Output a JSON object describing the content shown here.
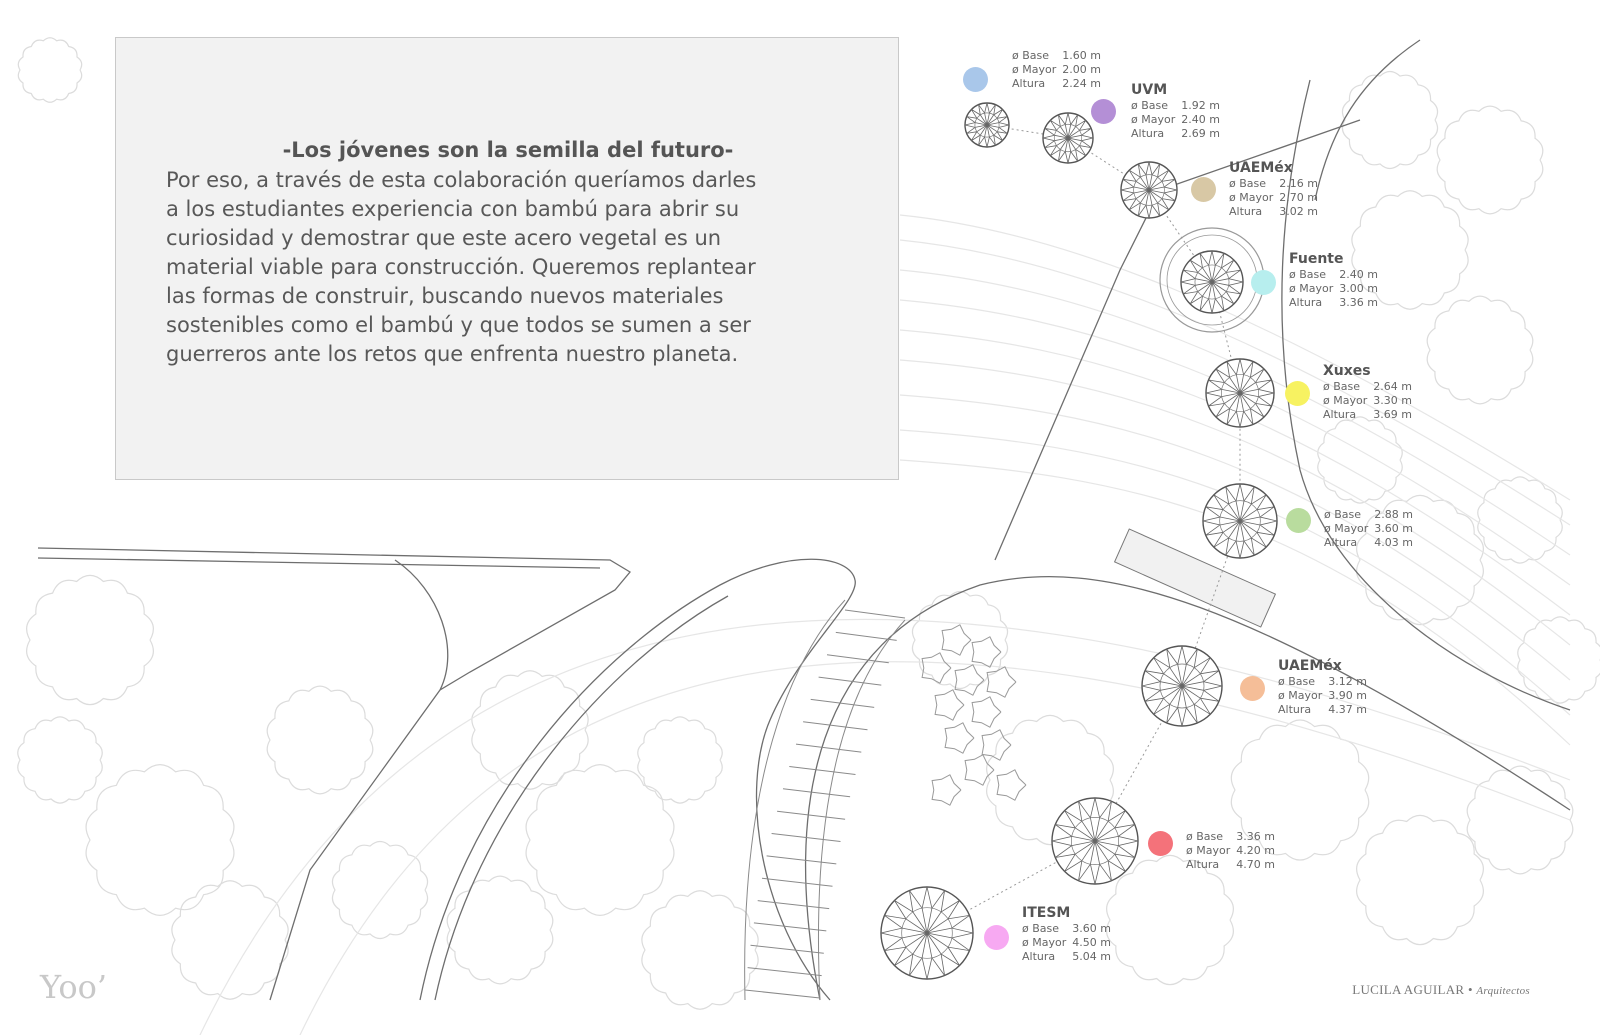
{
  "textbox": {
    "headline": "-Los jóvenes son la semilla del futuro-",
    "lines": [
      " Por eso, a través de esta colaboración queríamos darles",
      "a los estudiantes experiencia con bambú para abrir su",
      "curiosidad y demostrar que este acero vegetal es un",
      "material viable para construcción. Queremos replantear",
      "las formas de construir, buscando nuevos materiales",
      "sostenibles como el bambú y que todos se sumen a ser",
      "guerreros ante los retos que enfrenta nuestro planeta."
    ]
  },
  "keys": {
    "base": "ø Base",
    "mayor": "ø Mayor",
    "altura": "Altura"
  },
  "domes": [
    {
      "title": "",
      "base": "1.60 m",
      "mayor": "2.00 m",
      "altura": "2.24 m",
      "color": "#a9c7ea"
    },
    {
      "title": "UVM",
      "base": "1.92 m",
      "mayor": "2.40 m",
      "altura": "2.69 m",
      "color": "#b48fd6"
    },
    {
      "title": "UAEMéx",
      "base": "2.16 m",
      "mayor": "2.70 m",
      "altura": "3.02 m",
      "color": "#d8c8a5"
    },
    {
      "title": "Fuente",
      "base": "2.40 m",
      "mayor": "3.00 m",
      "altura": "3.36 m",
      "color": "#b7eeee"
    },
    {
      "title": "Xuxes",
      "base": "2.64 m",
      "mayor": "3.30 m",
      "altura": "3.69 m",
      "color": "#f7f261"
    },
    {
      "title": "",
      "base": "2.88 m",
      "mayor": "3.60 m",
      "altura": "4.03 m",
      "color": "#b9dc9e"
    },
    {
      "title": "UAEMéx",
      "base": "3.12 m",
      "mayor": "3.90 m",
      "altura": "4.37 m",
      "color": "#f5be98"
    },
    {
      "title": "",
      "base": "3.36 m",
      "mayor": "4.20 m",
      "altura": "4.70 m",
      "color": "#f4727a"
    },
    {
      "title": "ITESM",
      "base": "3.60 m",
      "mayor": "4.50 m",
      "altura": "5.04 m",
      "color": "#f7a9f2"
    }
  ],
  "logo": "Yoo’",
  "credit": {
    "name": "LUCILA AGUILAR",
    "sep": "•",
    "role": "Arquitectos"
  }
}
